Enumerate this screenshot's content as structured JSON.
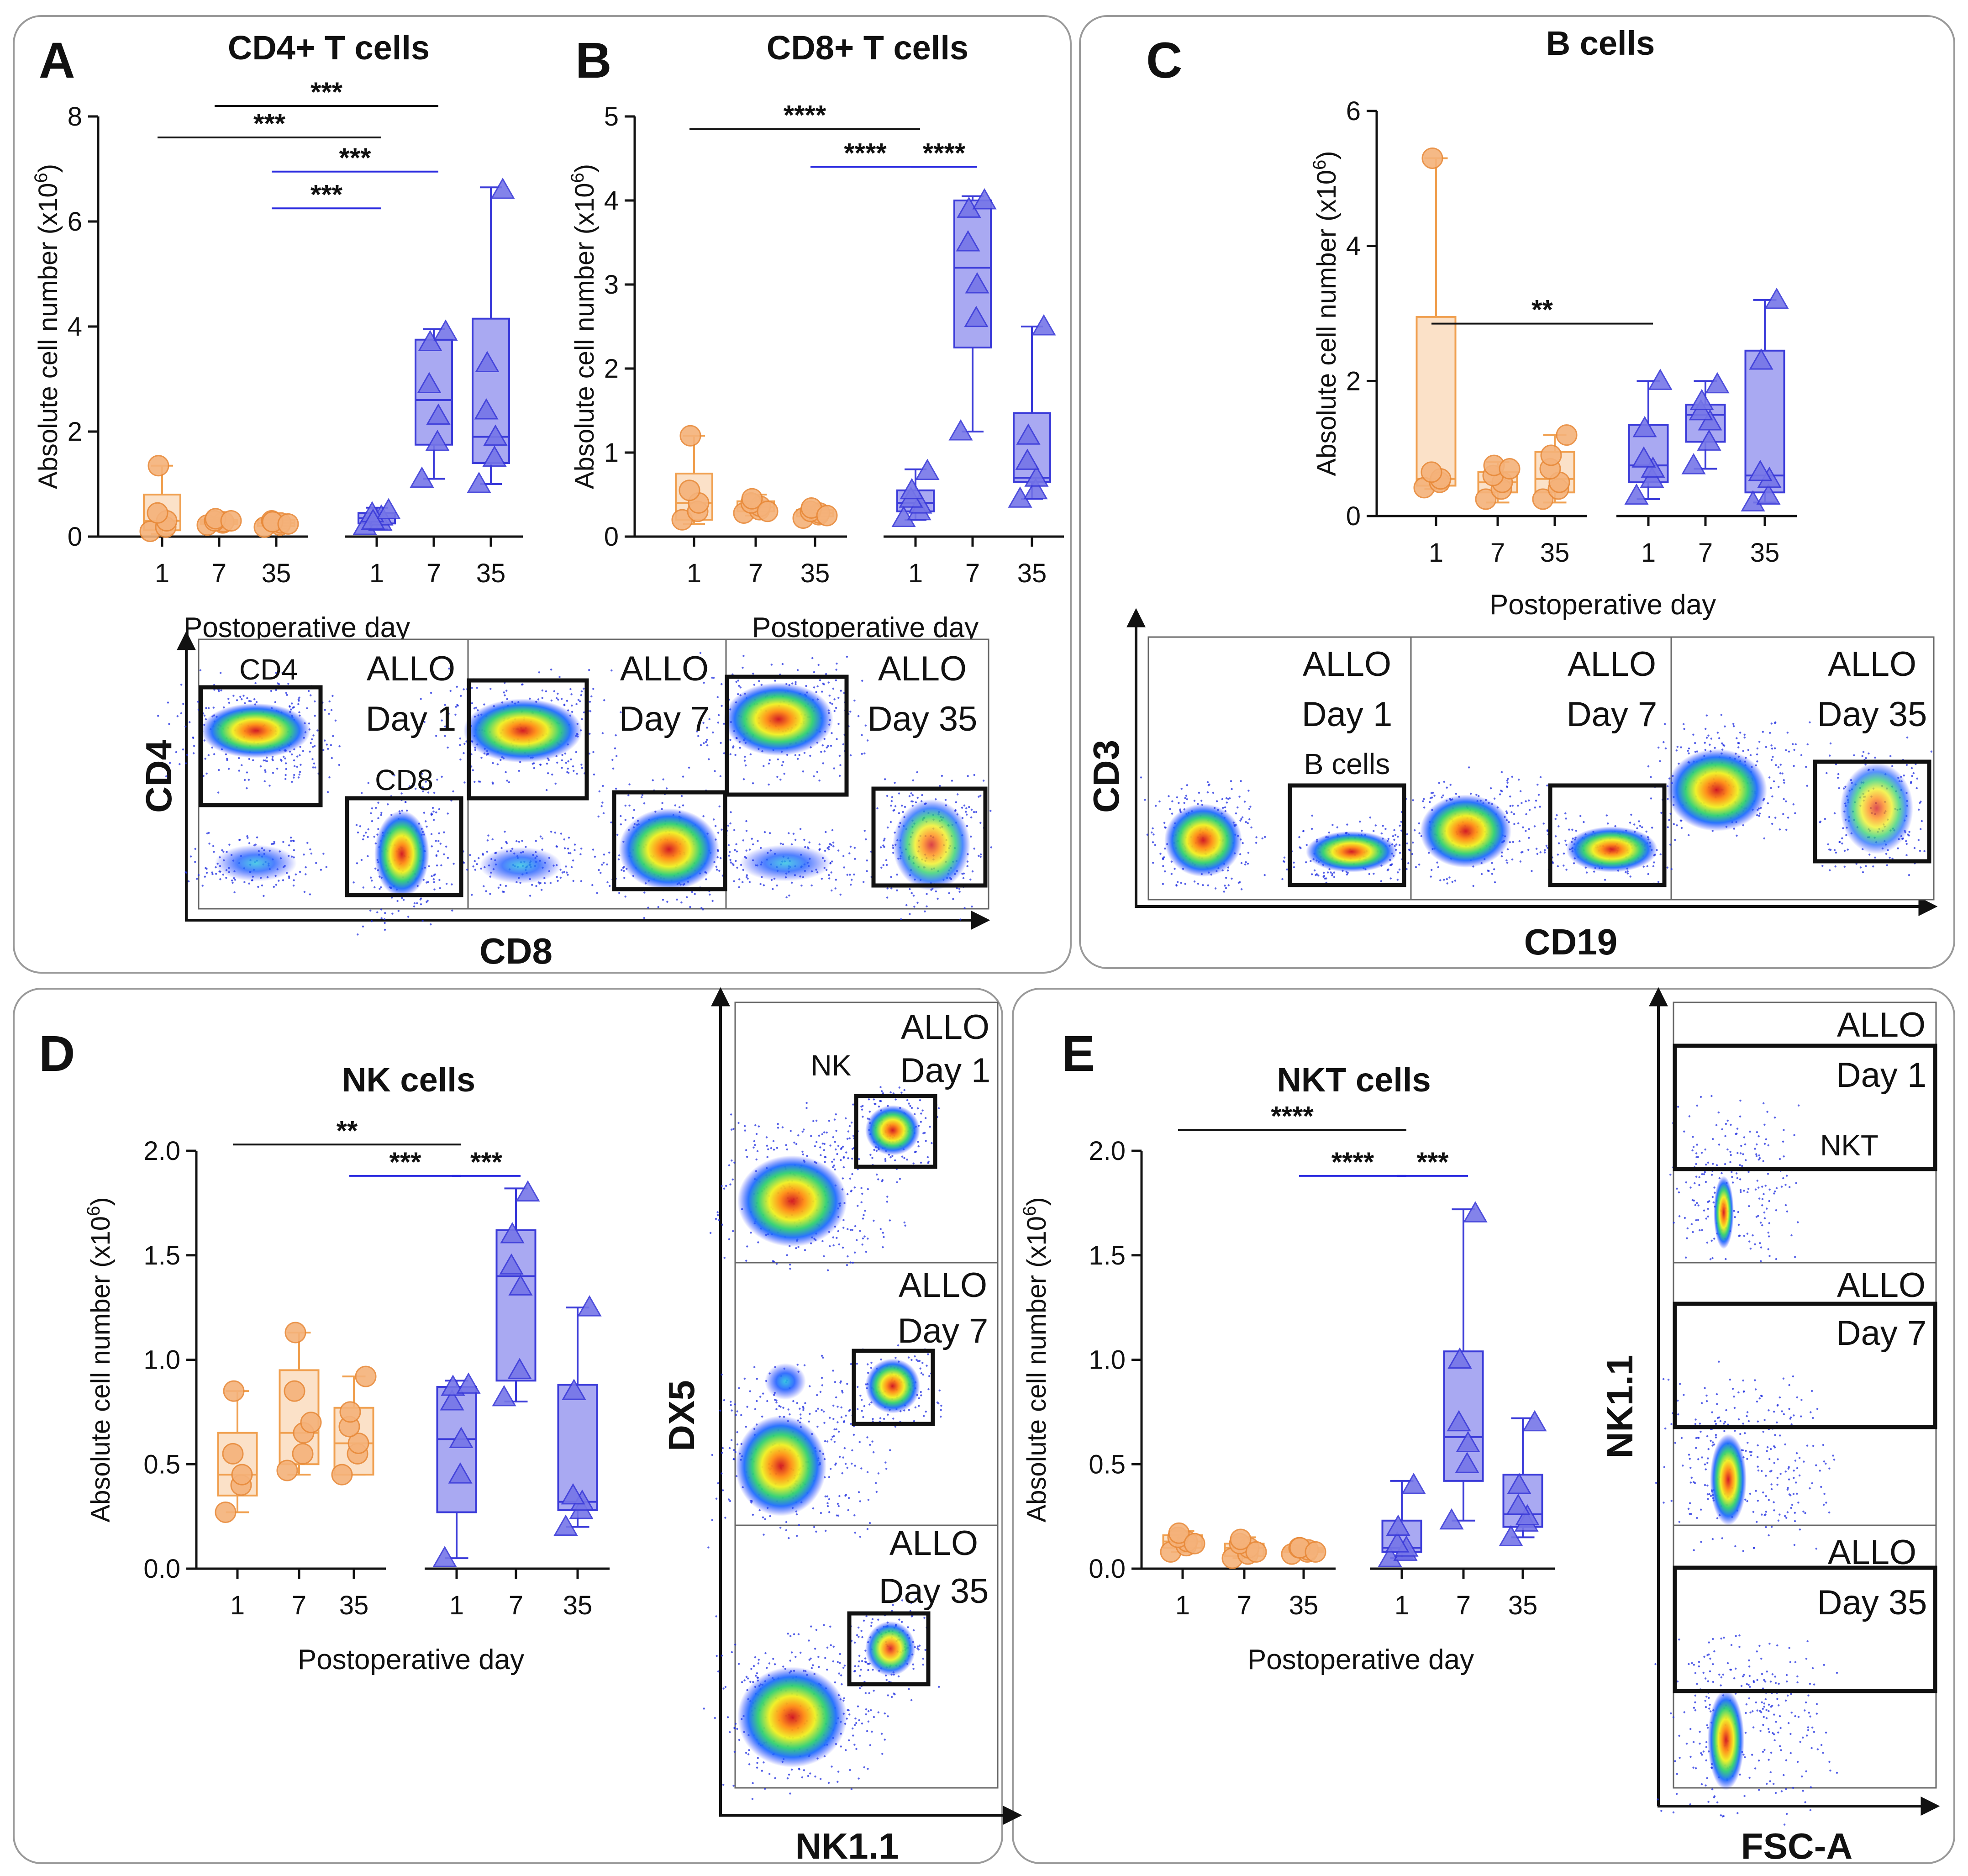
{
  "colors": {
    "allogeneic_edge": "#3b3bd9",
    "allogeneic_fill": "#a9a9f2",
    "syngeneic_edge": "#f0a050",
    "syngeneic_fill": "#fbe1c8",
    "syngeneic_dot": "#f5b27a",
    "significance_black": "#111111",
    "significance_blue": "#2b2be0"
  },
  "panels": {
    "A": {
      "letter": "A"
    },
    "B": {
      "letter": "B"
    },
    "C": {
      "letter": "C"
    },
    "D": {
      "letter": "D"
    },
    "E": {
      "letter": "E"
    }
  },
  "chart_data": [
    {
      "id": "A",
      "type": "box",
      "title": "CD4+ T cells",
      "ylabel": "Absolute cell number (x10⁶)",
      "xlabel": "Postoperative day",
      "ylim": [
        0,
        8
      ],
      "yticks": [
        "0",
        "2",
        "4",
        "6",
        "8"
      ],
      "categories": [
        "1",
        "7",
        "35",
        "1",
        "7",
        "35"
      ],
      "groups": [
        {
          "day": "1",
          "series": "syngeneic",
          "min": 0.05,
          "q1": 0.12,
          "median": 0.3,
          "q3": 0.8,
          "max": 1.35,
          "points": [
            0.1,
            0.18,
            0.3,
            0.45,
            1.35
          ]
        },
        {
          "day": "7",
          "series": "syngeneic",
          "min": 0.2,
          "q1": 0.24,
          "median": 0.28,
          "q3": 0.32,
          "max": 0.36,
          "points": [
            0.22,
            0.26,
            0.28,
            0.3,
            0.34,
            0.3
          ]
        },
        {
          "day": "35",
          "series": "syngeneic",
          "min": 0.15,
          "q1": 0.2,
          "median": 0.26,
          "q3": 0.32,
          "max": 0.38,
          "points": [
            0.18,
            0.22,
            0.26,
            0.3,
            0.28,
            0.24
          ]
        },
        {
          "day": "1",
          "series": "allogeneic",
          "min": 0.15,
          "q1": 0.25,
          "median": 0.35,
          "q3": 0.45,
          "max": 0.55,
          "points": [
            0.2,
            0.28,
            0.38,
            0.44,
            0.3,
            0.5
          ]
        },
        {
          "day": "7",
          "series": "allogeneic",
          "min": 1.1,
          "q1": 1.75,
          "median": 2.6,
          "q3": 3.75,
          "max": 3.95,
          "points": [
            1.1,
            1.8,
            2.3,
            2.9,
            3.7,
            3.9
          ]
        },
        {
          "day": "35",
          "series": "allogeneic",
          "min": 1.0,
          "q1": 1.4,
          "median": 1.9,
          "q3": 4.15,
          "max": 6.65,
          "points": [
            1.0,
            1.5,
            1.9,
            2.4,
            3.3,
            6.6
          ]
        }
      ],
      "significance": [
        {
          "from": 1,
          "to": 4,
          "label": "***",
          "color": "black",
          "y": 7.6
        },
        {
          "from": 2,
          "to": 5,
          "label": "***",
          "color": "black",
          "y": 8.2
        },
        {
          "from": 3,
          "to": 4,
          "label": "***",
          "color": "blue",
          "y": 6.25
        },
        {
          "from": 3,
          "to": 5,
          "label": "***",
          "color": "blue",
          "y": 6.95
        }
      ]
    },
    {
      "id": "B",
      "type": "box",
      "title": "CD8+ T cells",
      "ylabel": "Absolute cell number (x10⁶)",
      "xlabel": "Postoperative day",
      "ylim": [
        0,
        5
      ],
      "yticks": [
        "0",
        "1",
        "2",
        "3",
        "4",
        "5"
      ],
      "categories": [
        "1",
        "7",
        "35",
        "1",
        "7",
        "35"
      ],
      "groups": [
        {
          "day": "1",
          "series": "syngeneic",
          "min": 0.15,
          "q1": 0.2,
          "median": 0.4,
          "q3": 0.75,
          "max": 1.2,
          "points": [
            0.2,
            0.3,
            0.4,
            0.55,
            1.2
          ]
        },
        {
          "day": "7",
          "series": "syngeneic",
          "min": 0.25,
          "q1": 0.3,
          "median": 0.35,
          "q3": 0.42,
          "max": 0.5,
          "points": [
            0.28,
            0.32,
            0.36,
            0.4,
            0.45,
            0.3
          ]
        },
        {
          "day": "35",
          "series": "syngeneic",
          "min": 0.2,
          "q1": 0.24,
          "median": 0.28,
          "q3": 0.32,
          "max": 0.36,
          "points": [
            0.22,
            0.26,
            0.28,
            0.3,
            0.34,
            0.25
          ]
        },
        {
          "day": "1",
          "series": "allogeneic",
          "min": 0.2,
          "q1": 0.3,
          "median": 0.4,
          "q3": 0.55,
          "max": 0.8,
          "points": [
            0.22,
            0.3,
            0.38,
            0.45,
            0.55,
            0.78
          ]
        },
        {
          "day": "7",
          "series": "allogeneic",
          "min": 1.25,
          "q1": 2.25,
          "median": 3.2,
          "q3": 4.0,
          "max": 4.05,
          "points": [
            1.25,
            2.6,
            3.0,
            3.5,
            3.9,
            4.0
          ]
        },
        {
          "day": "35",
          "series": "allogeneic",
          "min": 0.45,
          "q1": 0.65,
          "median": 0.7,
          "q3": 1.47,
          "max": 2.5,
          "points": [
            0.45,
            0.55,
            0.7,
            0.9,
            1.2,
            2.5
          ]
        }
      ],
      "significance": [
        {
          "from": 1,
          "to": 4,
          "label": "****",
          "color": "black",
          "y": 4.85
        },
        {
          "from": 3,
          "to": 4,
          "label": "****",
          "color": "blue",
          "y": 4.4
        },
        {
          "from": 4,
          "to": 5,
          "label": "****",
          "color": "blue",
          "y": 4.4
        }
      ]
    },
    {
      "id": "C",
      "type": "box",
      "title": "B cells",
      "ylabel": "Absolute cell number (x10⁶)",
      "xlabel": "Postoperative day",
      "ylim": [
        0,
        6
      ],
      "yticks": [
        "0",
        "2",
        "4",
        "6"
      ],
      "categories": [
        "1",
        "7",
        "35",
        "1",
        "7",
        "35"
      ],
      "groups": [
        {
          "day": "1",
          "series": "syngeneic",
          "min": 0.4,
          "q1": 0.45,
          "median": 0.55,
          "q3": 2.95,
          "max": 5.3,
          "points": [
            0.42,
            0.5,
            0.55,
            0.65,
            5.3
          ]
        },
        {
          "day": "7",
          "series": "syngeneic",
          "min": 0.2,
          "q1": 0.35,
          "median": 0.5,
          "q3": 0.65,
          "max": 0.8,
          "points": [
            0.25,
            0.4,
            0.5,
            0.6,
            0.75,
            0.7
          ]
        },
        {
          "day": "35",
          "series": "syngeneic",
          "min": 0.2,
          "q1": 0.35,
          "median": 0.55,
          "q3": 0.95,
          "max": 1.2,
          "points": [
            0.25,
            0.4,
            0.5,
            0.7,
            0.9,
            1.2
          ]
        },
        {
          "day": "1",
          "series": "allogeneic",
          "min": 0.25,
          "q1": 0.5,
          "median": 0.75,
          "q3": 1.35,
          "max": 2.0,
          "points": [
            0.3,
            0.55,
            0.7,
            0.85,
            1.3,
            2.0
          ]
        },
        {
          "day": "7",
          "series": "allogeneic",
          "min": 0.7,
          "q1": 1.1,
          "median": 1.5,
          "q3": 1.65,
          "max": 2.0,
          "points": [
            0.75,
            1.1,
            1.4,
            1.55,
            1.7,
            1.95
          ]
        },
        {
          "day": "35",
          "series": "allogeneic",
          "min": 0.2,
          "q1": 0.35,
          "median": 0.6,
          "q3": 2.45,
          "max": 3.2,
          "points": [
            0.2,
            0.3,
            0.55,
            0.65,
            2.3,
            3.2
          ]
        }
      ],
      "significance": [
        {
          "from": 1,
          "to": 4,
          "label": "**",
          "color": "black",
          "y": 2.85
        }
      ]
    },
    {
      "id": "D",
      "type": "box",
      "title": "NK cells",
      "ylabel": "Absolute cell number (x10⁶)",
      "xlabel": "Postoperative day",
      "ylim": [
        0,
        2
      ],
      "yticks": [
        "0.0",
        "0.5",
        "1.0",
        "1.5",
        "2.0"
      ],
      "categories": [
        "1",
        "7",
        "35",
        "1",
        "7",
        "35"
      ],
      "groups": [
        {
          "day": "1",
          "series": "syngeneic",
          "min": 0.27,
          "q1": 0.35,
          "median": 0.45,
          "q3": 0.65,
          "max": 0.85,
          "points": [
            0.27,
            0.4,
            0.45,
            0.55,
            0.85
          ]
        },
        {
          "day": "7",
          "series": "syngeneic",
          "min": 0.45,
          "q1": 0.5,
          "median": 0.65,
          "q3": 0.95,
          "max": 1.13,
          "points": [
            0.47,
            0.55,
            0.65,
            0.85,
            1.13,
            0.7
          ]
        },
        {
          "day": "35",
          "series": "syngeneic",
          "min": 0.45,
          "q1": 0.45,
          "median": 0.6,
          "q3": 0.77,
          "max": 0.92,
          "points": [
            0.45,
            0.55,
            0.6,
            0.68,
            0.75,
            0.92
          ]
        },
        {
          "day": "1",
          "series": "allogeneic",
          "min": 0.05,
          "q1": 0.27,
          "median": 0.62,
          "q3": 0.87,
          "max": 0.9,
          "points": [
            0.05,
            0.45,
            0.62,
            0.8,
            0.87,
            0.88
          ]
        },
        {
          "day": "7",
          "series": "allogeneic",
          "min": 0.8,
          "q1": 0.9,
          "median": 1.4,
          "q3": 1.62,
          "max": 1.82,
          "points": [
            0.82,
            0.95,
            1.35,
            1.45,
            1.6,
            1.8
          ]
        },
        {
          "day": "35",
          "series": "allogeneic",
          "min": 0.2,
          "q1": 0.28,
          "median": 0.32,
          "q3": 0.88,
          "max": 1.25,
          "points": [
            0.2,
            0.28,
            0.32,
            0.35,
            0.85,
            1.25
          ]
        }
      ],
      "significance": [
        {
          "from": 1,
          "to": 4,
          "label": "**",
          "color": "black",
          "y": 2.03
        },
        {
          "from": 3,
          "to": 4,
          "label": "***",
          "color": "blue",
          "y": 1.88
        },
        {
          "from": 4,
          "to": 5,
          "label": "***",
          "color": "blue",
          "y": 1.88
        }
      ]
    },
    {
      "id": "E",
      "type": "box",
      "title": "NKT cells",
      "ylabel": "Absolute cell number (x10⁶)",
      "xlabel": "Postoperative day",
      "ylim": [
        0,
        2
      ],
      "yticks": [
        "0.0",
        "0.5",
        "1.0",
        "1.5",
        "2.0"
      ],
      "categories": [
        "1",
        "7",
        "35",
        "1",
        "7",
        "35"
      ],
      "groups": [
        {
          "day": "1",
          "series": "syngeneic",
          "min": 0.08,
          "q1": 0.1,
          "median": 0.13,
          "q3": 0.16,
          "max": 0.18,
          "points": [
            0.08,
            0.11,
            0.13,
            0.15,
            0.17,
            0.12
          ]
        },
        {
          "day": "7",
          "series": "syngeneic",
          "min": 0.05,
          "q1": 0.06,
          "median": 0.1,
          "q3": 0.12,
          "max": 0.15,
          "points": [
            0.05,
            0.07,
            0.1,
            0.12,
            0.14,
            0.08
          ]
        },
        {
          "day": "35",
          "series": "syngeneic",
          "min": 0.07,
          "q1": 0.08,
          "median": 0.09,
          "q3": 0.1,
          "max": 0.11,
          "points": [
            0.07,
            0.08,
            0.09,
            0.1,
            0.1,
            0.08
          ]
        },
        {
          "day": "1",
          "series": "allogeneic",
          "min": 0.05,
          "q1": 0.08,
          "median": 0.1,
          "q3": 0.23,
          "max": 0.42,
          "points": [
            0.05,
            0.08,
            0.1,
            0.12,
            0.2,
            0.4
          ]
        },
        {
          "day": "7",
          "series": "allogeneic",
          "min": 0.23,
          "q1": 0.42,
          "median": 0.63,
          "q3": 1.04,
          "max": 1.72,
          "points": [
            0.23,
            0.5,
            0.6,
            0.7,
            1.0,
            1.7
          ]
        },
        {
          "day": "35",
          "series": "allogeneic",
          "min": 0.15,
          "q1": 0.2,
          "median": 0.26,
          "q3": 0.45,
          "max": 0.72,
          "points": [
            0.15,
            0.22,
            0.25,
            0.3,
            0.4,
            0.7
          ]
        }
      ],
      "significance": [
        {
          "from": 1,
          "to": 4,
          "label": "****",
          "color": "black",
          "y": 2.1
        },
        {
          "from": 3,
          "to": 4,
          "label": "****",
          "color": "blue",
          "y": 1.88
        },
        {
          "from": 4,
          "to": 5,
          "label": "***",
          "color": "blue",
          "y": 1.88
        }
      ]
    }
  ],
  "flow": {
    "ab": {
      "y_axis": "CD4",
      "x_axis": "CD8",
      "gate_cd4": "CD4",
      "gate_cd8": "CD8",
      "frames": [
        {
          "group": "ALLO",
          "day": "Day 1"
        },
        {
          "group": "ALLO",
          "day": "Day 7"
        },
        {
          "group": "ALLO",
          "day": "Day 35"
        }
      ]
    },
    "c": {
      "y_axis": "CD3",
      "x_axis": "CD19",
      "gate_b": "B cells",
      "frames": [
        {
          "group": "ALLO",
          "day": "Day 1"
        },
        {
          "group": "ALLO",
          "day": "Day 7"
        },
        {
          "group": "ALLO",
          "day": "Day 35"
        }
      ]
    },
    "d": {
      "y_axis": "DX5",
      "x_axis": "NK1.1",
      "gate_nk": "NK",
      "frames": [
        {
          "group": "ALLO",
          "day": "Day 1"
        },
        {
          "group": "ALLO",
          "day": "Day 7"
        },
        {
          "group": "ALLO",
          "day": "Day 35"
        }
      ]
    },
    "e": {
      "y_axis": "NK1.1",
      "x_axis": "FSC-A",
      "gate_nkt": "NKT",
      "frames": [
        {
          "group": "ALLO",
          "day": "Day 1"
        },
        {
          "group": "ALLO",
          "day": "Day 7"
        },
        {
          "group": "ALLO",
          "day": "Day 35"
        }
      ]
    }
  }
}
